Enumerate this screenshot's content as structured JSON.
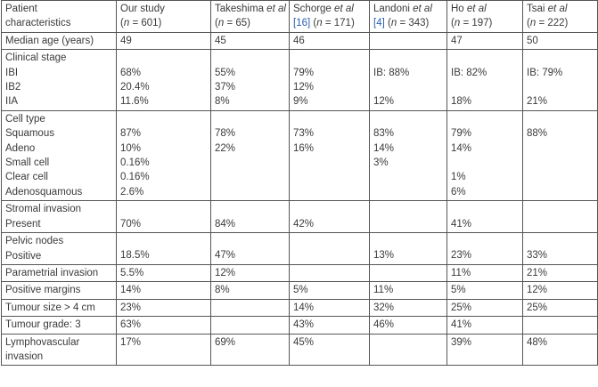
{
  "header": {
    "label_lines": [
      "Patient",
      "characteristics"
    ],
    "studies": [
      {
        "name": "Our study",
        "etal": false,
        "ref": "",
        "n": "601"
      },
      {
        "name": "Takeshima",
        "etal": true,
        "ref": "",
        "n": "65"
      },
      {
        "name": "Schorge",
        "etal": true,
        "ref": "[16]",
        "n": "171"
      },
      {
        "name": "Landoni",
        "etal": true,
        "ref": "[4]",
        "n": "343"
      },
      {
        "name": "Ho",
        "etal": true,
        "ref": "",
        "n": "197"
      },
      {
        "name": "Tsai",
        "etal": true,
        "ref": "",
        "n": "222"
      }
    ],
    "etal_text": "et al",
    "n_prefix": "(",
    "n_var": "n",
    "n_eq": " = ",
    "n_suffix": ")"
  },
  "rows": [
    {
      "label": [
        "Median age (years)"
      ],
      "cells": [
        [
          "49"
        ],
        [
          "45"
        ],
        [
          "46"
        ],
        [
          ""
        ],
        [
          "47"
        ],
        [
          "50"
        ]
      ]
    },
    {
      "label": [
        "Clinical stage",
        "IBI",
        "IB2",
        "IIA"
      ],
      "cells": [
        [
          "",
          "68%",
          "20.4%",
          "11.6%"
        ],
        [
          "",
          "55%",
          "37%",
          "8%"
        ],
        [
          "",
          "79%",
          "12%",
          "9%"
        ],
        [
          "",
          "IB: 88%",
          "",
          "12%"
        ],
        [
          "",
          "IB: 82%",
          "",
          "18%"
        ],
        [
          "",
          "IB: 79%",
          "",
          "21%"
        ]
      ]
    },
    {
      "label": [
        "Cell type",
        "Squamous",
        "Adeno",
        "Small cell",
        "Clear cell",
        "Adenosquamous"
      ],
      "cells": [
        [
          "",
          "87%",
          "10%",
          "0.16%",
          "0.16%",
          "2.6%"
        ],
        [
          "",
          "78%",
          "22%",
          "",
          "",
          ""
        ],
        [
          "",
          "73%",
          "16%",
          "",
          "",
          ""
        ],
        [
          "",
          "83%",
          "14%",
          "3%",
          "",
          ""
        ],
        [
          "",
          "79%",
          "14%",
          "",
          "1%",
          "6%"
        ],
        [
          "",
          "88%",
          "",
          "",
          "",
          ""
        ]
      ]
    },
    {
      "label": [
        "Stromal invasion",
        "Present"
      ],
      "cells": [
        [
          "",
          "70%"
        ],
        [
          "",
          "84%"
        ],
        [
          "",
          "42%"
        ],
        [
          "",
          ""
        ],
        [
          "",
          "41%"
        ],
        [
          "",
          ""
        ]
      ]
    },
    {
      "label": [
        "Pelvic nodes",
        "Positive"
      ],
      "cells": [
        [
          "",
          "18.5%"
        ],
        [
          "",
          "47%"
        ],
        [
          "",
          ""
        ],
        [
          "",
          "13%"
        ],
        [
          "",
          "23%"
        ],
        [
          "",
          "33%"
        ]
      ]
    },
    {
      "label": [
        "Parametrial invasion"
      ],
      "cells": [
        [
          "5.5%"
        ],
        [
          "12%"
        ],
        [
          ""
        ],
        [
          ""
        ],
        [
          "11%"
        ],
        [
          "21%"
        ]
      ]
    },
    {
      "label": [
        "Positive margins"
      ],
      "cells": [
        [
          "14%"
        ],
        [
          "8%"
        ],
        [
          "5%"
        ],
        [
          "11%"
        ],
        [
          "5%"
        ],
        [
          "12%"
        ]
      ]
    },
    {
      "label": [
        "Tumour size > 4 cm"
      ],
      "cells": [
        [
          "23%"
        ],
        [
          ""
        ],
        [
          "14%"
        ],
        [
          "32%"
        ],
        [
          "25%"
        ],
        [
          "25%"
        ]
      ]
    },
    {
      "label": [
        "Tumour grade: 3"
      ],
      "cells": [
        [
          "63%"
        ],
        [
          ""
        ],
        [
          "43%"
        ],
        [
          "46%"
        ],
        [
          "41%"
        ],
        [
          ""
        ]
      ]
    },
    {
      "label": [
        "Lymphovascular",
        "invasion"
      ],
      "cells": [
        [
          "17%"
        ],
        [
          "69%"
        ],
        [
          "45%"
        ],
        [
          ""
        ],
        [
          "39%"
        ],
        [
          "48%"
        ]
      ]
    }
  ]
}
